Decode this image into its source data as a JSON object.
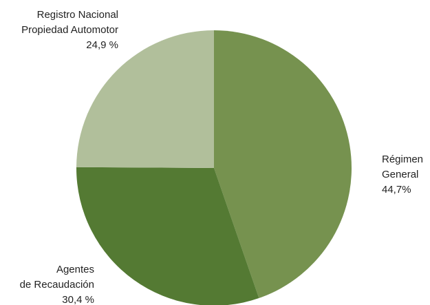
{
  "chart_data": {
    "type": "pie",
    "categories": [
      [
        "Régimen",
        "General"
      ],
      [
        "Agentes",
        "de Recaudación"
      ],
      [
        "Registro Nacional",
        "Propiedad Automotor"
      ]
    ],
    "values": [
      44.7,
      30.4,
      24.9
    ],
    "value_labels": [
      "44,7%",
      "30,4 %",
      "24,9 %"
    ],
    "colors": [
      "#76924f",
      "#547a33",
      "#b1bf9b"
    ]
  }
}
